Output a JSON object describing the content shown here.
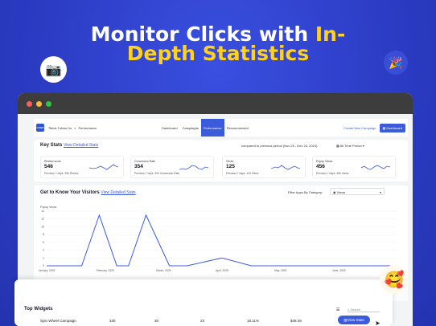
{
  "headline": {
    "line1": "Monitor Clicks with ",
    "line1_highlight": "In-",
    "line2_highlight": "Depth Statistics"
  },
  "decor": {
    "camera": "📷",
    "party": "🎉",
    "smiley": "🥰"
  },
  "window": {
    "dots": [
      "#ff5f57",
      "#febc2e",
      "#28c840"
    ]
  },
  "nav": {
    "logo": "LOGO",
    "crumb_app": "Tiktok Follow Us",
    "crumb_sep": "»",
    "crumb_page": "Performance",
    "tabs": [
      "Dashboard",
      "Campaigns",
      "Performance",
      "Recommended"
    ],
    "active_tab": "Performance",
    "create": "Create New Campaign",
    "dashboard_btn": "Dashboard"
  },
  "key_stats": {
    "title": "Key Stats",
    "link": "View Detailed Stats",
    "compared": "compared to previous period (Nov 25 - Dec 24, 2024)",
    "period": "All Time Period",
    "cards": [
      {
        "label": "Review score",
        "value": "546",
        "prev": "Previous 7 days: 396 Review"
      },
      {
        "label": "Conversion Rate",
        "value": "354",
        "prev": "Previous 7 days: 300 Conversion Rate"
      },
      {
        "label": "Clicks",
        "value": "125",
        "prev": "Previous 7 days: 125 Clicks"
      },
      {
        "label": "Popup Views",
        "value": "456",
        "prev": "Previous 7 days: 456 Views"
      }
    ]
  },
  "visitors": {
    "title": "Get to Know Your Visitors",
    "link": "View Detailed Stats",
    "filter_label": "Filter Apps By Category:",
    "filter_value": "Views",
    "series_label": "Popup Views"
  },
  "chart_data": {
    "type": "line",
    "title": "Get to Know Your Visitors",
    "ylabel": "Popup Views",
    "ylim": [
      0,
      14
    ],
    "yticks": [
      "14",
      "12",
      "10",
      "8",
      "6",
      "4",
      "2",
      "0"
    ],
    "xticks": [
      "January, 2025",
      "February, 2025",
      "March, 2025",
      "April, 2025",
      "May, 2025",
      "June, 2025",
      "July 2, 2025"
    ],
    "series": [
      {
        "name": "Popup Views",
        "x": [
          0,
          0.6,
          0.9,
          1.2,
          1.4,
          1.7,
          2.1,
          2.4,
          3,
          3.5,
          4,
          5,
          6
        ],
        "values": [
          0,
          0,
          13,
          0,
          0,
          13,
          0,
          0,
          2,
          0,
          0,
          0,
          0
        ]
      }
    ]
  },
  "widgets": {
    "title": "Top Widgets",
    "search": "Search",
    "row": [
      "Spin Wheel Campaign",
      "330",
      "30",
      "23",
      "18.11%",
      "$48.49"
    ],
    "view_btn": "View Stats"
  }
}
